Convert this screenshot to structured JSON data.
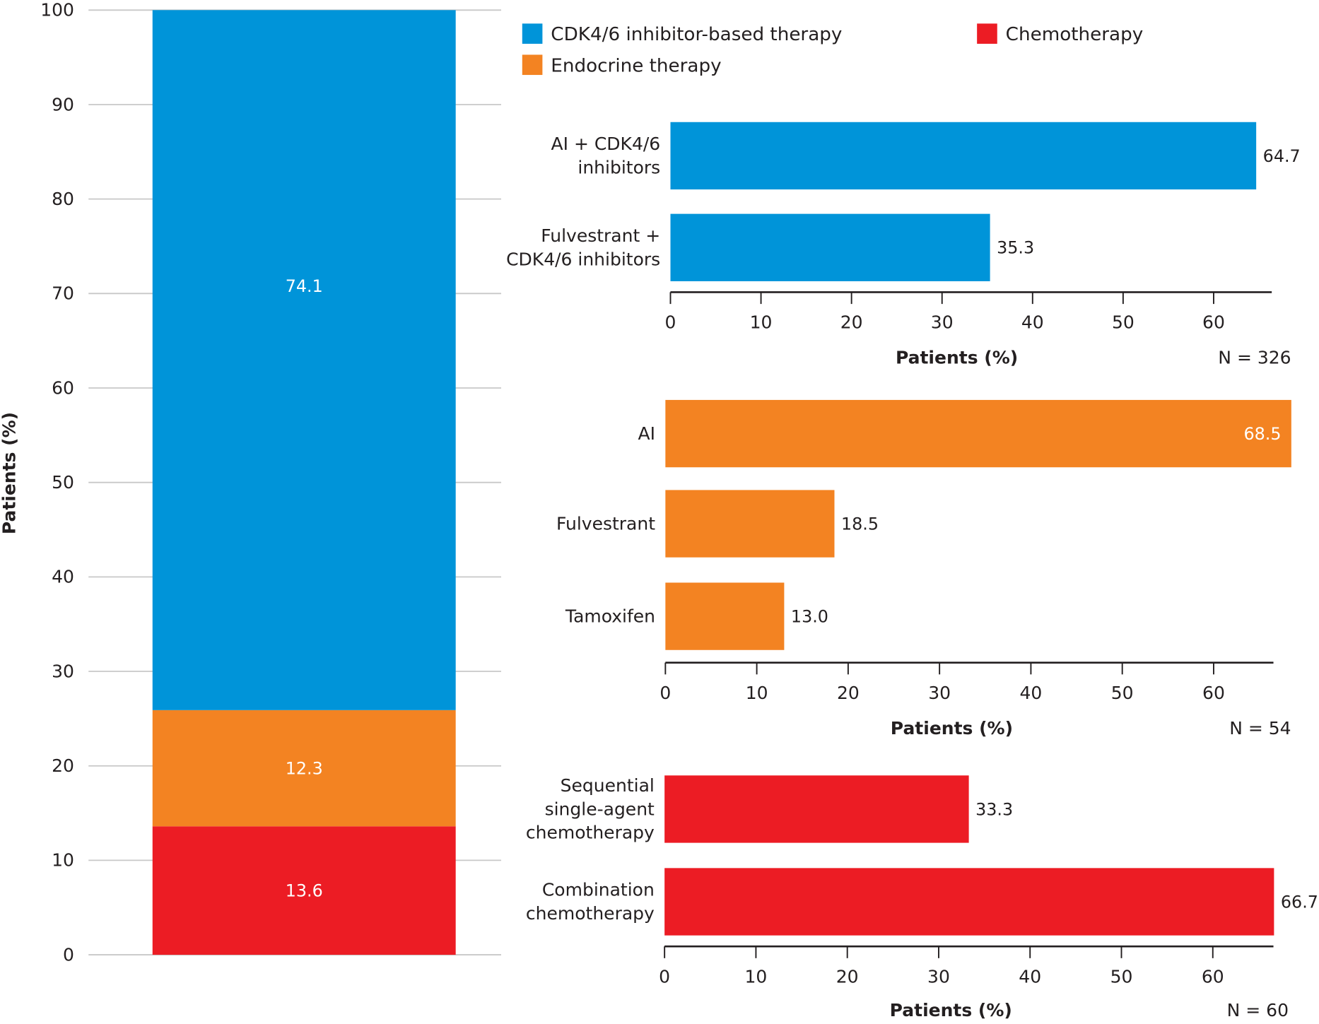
{
  "colors": {
    "cdk": "#0094d9",
    "endocrine": "#f38322",
    "chemo": "#ec1c24",
    "grid": "#c8c8c8",
    "axis": "#231f20"
  },
  "legend": [
    {
      "label": "CDK4/6 inhibitor-based therapy",
      "color_key": "cdk"
    },
    {
      "label": "Endocrine therapy",
      "color_key": "endocrine"
    },
    {
      "label": "Chemotherapy",
      "color_key": "chemo"
    }
  ],
  "chart_data": [
    {
      "type": "bar",
      "subtype": "stacked-vertical",
      "title": "",
      "xlabel": "",
      "ylabel": "Patients (%)",
      "ylim": [
        0,
        100
      ],
      "yticks": [
        0,
        10,
        20,
        30,
        40,
        50,
        60,
        70,
        80,
        90,
        100
      ],
      "grid": true,
      "series": [
        {
          "name": "Chemotherapy",
          "color_key": "chemo",
          "value": 13.6,
          "label": "13.6"
        },
        {
          "name": "Endocrine therapy",
          "color_key": "endocrine",
          "value": 12.3,
          "label": "12.3"
        },
        {
          "name": "CDK4/6 inhibitor-based therapy",
          "color_key": "cdk",
          "value": 74.1,
          "label": "74.1"
        }
      ]
    },
    {
      "type": "bar",
      "subtype": "horizontal",
      "group": "CDK4/6 inhibitor-based therapy",
      "color_key": "cdk",
      "categories": [
        [
          "AI + CDK4/6",
          "inhibitors"
        ],
        [
          "Fulvestrant +",
          "CDK4/6 inhibitors"
        ]
      ],
      "values": [
        64.7,
        35.3
      ],
      "value_labels": [
        "64.7",
        "35.3"
      ],
      "xlabel": "Patients (%)",
      "xlim": [
        0,
        66
      ],
      "xticks": [
        0,
        10,
        20,
        30,
        40,
        50,
        60
      ],
      "n_label": "N = 326"
    },
    {
      "type": "bar",
      "subtype": "horizontal",
      "group": "Endocrine therapy",
      "color_key": "endocrine",
      "categories": [
        [
          "AI"
        ],
        [
          "Fulvestrant"
        ],
        [
          "Tamoxifen"
        ]
      ],
      "values": [
        68.5,
        18.5,
        13.0
      ],
      "value_labels": [
        "68.5",
        "18.5",
        "13.0"
      ],
      "xlabel": "Patients (%)",
      "xlim": [
        0,
        66
      ],
      "xticks": [
        0,
        10,
        20,
        30,
        40,
        50,
        60
      ],
      "n_label": "N = 54"
    },
    {
      "type": "bar",
      "subtype": "horizontal",
      "group": "Chemotherapy",
      "color_key": "chemo",
      "categories": [
        [
          "Sequential",
          "single-agent",
          "chemotherapy"
        ],
        [
          "Combination",
          "chemotherapy"
        ]
      ],
      "values": [
        33.3,
        66.7
      ],
      "value_labels": [
        "33.3",
        "66.7"
      ],
      "xlabel": "Patients (%)",
      "xlim": [
        0,
        66
      ],
      "xticks": [
        0,
        10,
        20,
        30,
        40,
        50,
        60
      ],
      "n_label": "N = 60"
    }
  ]
}
